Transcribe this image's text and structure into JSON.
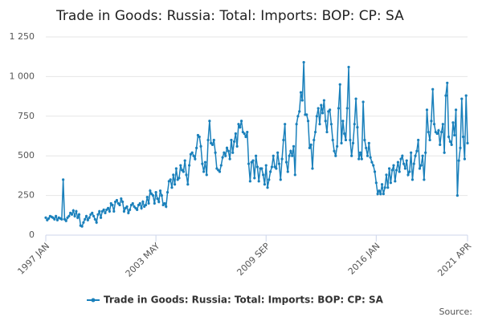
{
  "chart_data": {
    "type": "line",
    "title": "Trade in Goods: Russia: Total: Imports: BOP: CP: SA",
    "source": "Source:",
    "categories": [
      "1997 JAN",
      null,
      null,
      null,
      null,
      null,
      null,
      null,
      null,
      null,
      null,
      null,
      null,
      null,
      null,
      null,
      null,
      null,
      null,
      null,
      null,
      null,
      null,
      null,
      null,
      null,
      null,
      null,
      null,
      null,
      null,
      null,
      null,
      null,
      null,
      null,
      null,
      null,
      null,
      null,
      null,
      null,
      null,
      null,
      null,
      null,
      null,
      null,
      null,
      null,
      null,
      null,
      null,
      null,
      null,
      null,
      null,
      null,
      null,
      null,
      null,
      null,
      null,
      null,
      null,
      null,
      null,
      null,
      null,
      null,
      null,
      null,
      null,
      null,
      null,
      null,
      "2003 MAY",
      null,
      null,
      null,
      null,
      null,
      null,
      null,
      null,
      null,
      null,
      null,
      null,
      null,
      null,
      null,
      null,
      null,
      null,
      null,
      null,
      null,
      null,
      null,
      null,
      null,
      null,
      null,
      null,
      null,
      null,
      null,
      null,
      null,
      null,
      null,
      null,
      null,
      null,
      null,
      null,
      null,
      null,
      null,
      null,
      null,
      null,
      null,
      null,
      null,
      null,
      null,
      null,
      null,
      null,
      null,
      null,
      null,
      null,
      null,
      null,
      null,
      null,
      null,
      null,
      null,
      null,
      null,
      null,
      null,
      null,
      null,
      null,
      null,
      null,
      null,
      "2009 SEP",
      null,
      null,
      null,
      null,
      null,
      null,
      null,
      null,
      null,
      null,
      null,
      null,
      null,
      null,
      null,
      null,
      null,
      null,
      null,
      null,
      null,
      null,
      null,
      null,
      null,
      null,
      null,
      null,
      null,
      null,
      null,
      null,
      null,
      null,
      null,
      null,
      null,
      null,
      null,
      null,
      null,
      null,
      null,
      null,
      null,
      null,
      null,
      null,
      null,
      null,
      null,
      null,
      null,
      null,
      null,
      null,
      null,
      null,
      null,
      null,
      null,
      null,
      null,
      null,
      null,
      null,
      null,
      null,
      null,
      null,
      null,
      null,
      null,
      null,
      null,
      "2016 JAN",
      null,
      null,
      null,
      null,
      null,
      null,
      null,
      null,
      null,
      null,
      null,
      null,
      null,
      null,
      null,
      null,
      null,
      null,
      null,
      null,
      null,
      null,
      null,
      null,
      null,
      null,
      null,
      null,
      null,
      null,
      null,
      null,
      null,
      null,
      null,
      null,
      null,
      null,
      null,
      null,
      null,
      null,
      null,
      null,
      null,
      null,
      null,
      null,
      null,
      null,
      null,
      null,
      null,
      null,
      null,
      null,
      null,
      null,
      null,
      null,
      null,
      null,
      "2021 APR"
    ],
    "series": [
      {
        "name": "Trade in Goods: Russia: Total: Imports: BOP: CP: SA",
        "color": "#1a80bb",
        "values": [
          110,
          95,
          105,
          120,
          115,
          110,
          100,
          120,
          95,
          110,
          105,
          100,
          350,
          100,
          90,
          110,
          120,
          140,
          130,
          155,
          120,
          150,
          110,
          130,
          60,
          55,
          80,
          100,
          120,
          95,
          110,
          130,
          140,
          120,
          100,
          80,
          130,
          150,
          110,
          150,
          160,
          140,
          160,
          170,
          150,
          200,
          190,
          150,
          210,
          220,
          200,
          190,
          230,
          210,
          150,
          170,
          180,
          140,
          160,
          190,
          200,
          180,
          170,
          160,
          190,
          200,
          170,
          210,
          180,
          190,
          240,
          200,
          280,
          260,
          250,
          200,
          270,
          230,
          210,
          280,
          250,
          190,
          200,
          180,
          270,
          340,
          350,
          300,
          380,
          320,
          420,
          350,
          360,
          440,
          410,
          400,
          470,
          380,
          320,
          440,
          510,
          520,
          500,
          480,
          550,
          630,
          620,
          560,
          450,
          400,
          460,
          380,
          600,
          720,
          580,
          570,
          600,
          520,
          420,
          410,
          400,
          440,
          490,
          520,
          500,
          550,
          530,
          480,
          600,
          520,
          590,
          640,
          560,
          700,
          680,
          720,
          650,
          640,
          620,
          650,
          450,
          340,
          460,
          470,
          360,
          500,
          430,
          340,
          420,
          420,
          380,
          320,
          440,
          300,
          350,
          400,
          430,
          500,
          430,
          420,
          520,
          450,
          350,
          480,
          600,
          700,
          460,
          400,
          500,
          530,
          500,
          560,
          380,
          700,
          750,
          780,
          900,
          850,
          1090,
          760,
          760,
          720,
          550,
          570,
          420,
          600,
          650,
          750,
          800,
          700,
          820,
          770,
          850,
          720,
          650,
          780,
          790,
          700,
          600,
          530,
          500,
          560,
          800,
          950,
          580,
          720,
          640,
          600,
          800,
          1060,
          600,
          500,
          580,
          700,
          860,
          680,
          480,
          520,
          480,
          840,
          600,
          550,
          500,
          580,
          490,
          460,
          440,
          400,
          330,
          260,
          280,
          260,
          320,
          260,
          300,
          380,
          300,
          420,
          330,
          410,
          440,
          340,
          410,
          460,
          400,
          480,
          500,
          450,
          420,
          470,
          380,
          400,
          520,
          350,
          450,
          500,
          530,
          600,
          420,
          440,
          500,
          350,
          520,
          790,
          650,
          600,
          720,
          920,
          700,
          650,
          640,
          660,
          570,
          650,
          700,
          520,
          880,
          960,
          620,
          590,
          570,
          710,
          630,
          790,
          250,
          470,
          550,
          860,
          620,
          480,
          880,
          580
        ]
      }
    ],
    "ylim": [
      0,
      1250
    ],
    "yticks": [
      0,
      250,
      500,
      750,
      {
        "value": 1000,
        "label": "1 000"
      },
      {
        "value": 1250,
        "label": "1 250"
      }
    ],
    "grid": true
  }
}
